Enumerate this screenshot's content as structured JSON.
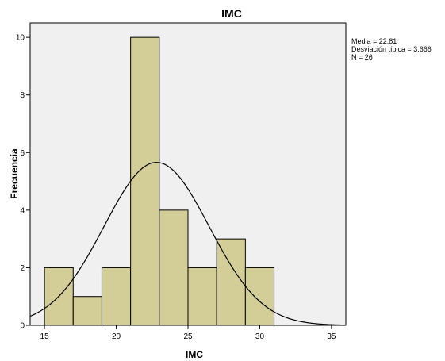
{
  "chart_data": {
    "type": "bar",
    "title": "IMC",
    "xlabel": "IMC",
    "ylabel": "Frecuencia",
    "bin_width": 2,
    "bins": [
      {
        "start": 15,
        "end": 17,
        "count": 2
      },
      {
        "start": 17,
        "end": 19,
        "count": 1
      },
      {
        "start": 19,
        "end": 21,
        "count": 2
      },
      {
        "start": 21,
        "end": 23,
        "count": 10
      },
      {
        "start": 23,
        "end": 25,
        "count": 4
      },
      {
        "start": 25,
        "end": 27,
        "count": 2
      },
      {
        "start": 27,
        "end": 29,
        "count": 3
      },
      {
        "start": 29,
        "end": 31,
        "count": 2
      }
    ],
    "xlim": [
      14,
      36
    ],
    "ylim": [
      0,
      10.5
    ],
    "x_ticks": [
      15,
      20,
      25,
      30,
      35
    ],
    "y_ticks": [
      0,
      2,
      4,
      6,
      8,
      10
    ],
    "x_tick_labels": [
      "15",
      "20",
      "25",
      "30",
      "35"
    ],
    "y_tick_labels": [
      "0",
      "2",
      "4",
      "6",
      "8",
      "10"
    ],
    "normal_curve": {
      "mean": 22.81,
      "sd": 3.666,
      "n": 26
    },
    "stats_text": [
      "Media = 22.81",
      "Desviación típica = 3.666",
      "N = 26"
    ],
    "grid": false,
    "legend": "none",
    "colors": {
      "plot_background": "#f0f0f0",
      "bar_fill": "#d3ce97",
      "bar_stroke": "#000000",
      "curve": "#000000",
      "frame": "#000000"
    }
  }
}
